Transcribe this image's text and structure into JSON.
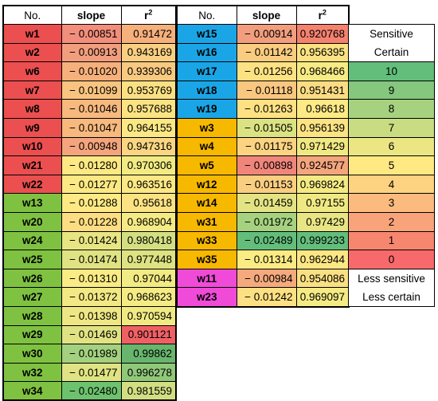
{
  "colors": {
    "red": "#ec4f4f",
    "green": "#7fc241",
    "blue": "#1aa6e6",
    "orange": "#f7b800",
    "magenta": "#f04ad8"
  },
  "left_table": {
    "headers": {
      "no": "No.",
      "slope": "slope",
      "r": "r",
      "r_sup": "2"
    },
    "rows": [
      {
        "id": "w1",
        "group": "red",
        "slope": "− 0.00851",
        "r2": "0.91472",
        "slope_color": "#f28e7b",
        "r2_color": "#f6b07c"
      },
      {
        "id": "w2",
        "group": "red",
        "slope": "− 0.00913",
        "r2": "0.943169",
        "slope_color": "#f29e7e",
        "r2_color": "#f9cf82"
      },
      {
        "id": "w6",
        "group": "red",
        "slope": "− 0.01020",
        "r2": "0.939306",
        "slope_color": "#f6b07c",
        "r2_color": "#f8c980"
      },
      {
        "id": "w7",
        "group": "red",
        "slope": "− 0.01099",
        "r2": "0.953769",
        "slope_color": "#f9c47f",
        "r2_color": "#fbe083"
      },
      {
        "id": "w8",
        "group": "red",
        "slope": "− 0.01046",
        "r2": "0.957688",
        "slope_color": "#f7b97e",
        "r2_color": "#fbe383"
      },
      {
        "id": "w9",
        "group": "red",
        "slope": "− 0.01047",
        "r2": "0.964155",
        "slope_color": "#f7b97e",
        "r2_color": "#fbe884"
      },
      {
        "id": "w10",
        "group": "red",
        "slope": "− 0.00948",
        "r2": "0.947316",
        "slope_color": "#f4a57d",
        "r2_color": "#fad682"
      },
      {
        "id": "w21",
        "group": "red",
        "slope": "− 0.01280",
        "r2": "0.970306",
        "slope_color": "#fde984",
        "r2_color": "#f2eb83"
      },
      {
        "id": "w22",
        "group": "red",
        "slope": "− 0.01277",
        "r2": "0.963516",
        "slope_color": "#fde984",
        "r2_color": "#fce884"
      },
      {
        "id": "w13",
        "group": "green",
        "slope": "− 0.01288",
        "r2": "0.95618",
        "slope_color": "#fdea84",
        "r2_color": "#fbe283"
      },
      {
        "id": "w20",
        "group": "green",
        "slope": "− 0.01228",
        "r2": "0.968904",
        "slope_color": "#fddd82",
        "r2_color": "#f5eb84"
      },
      {
        "id": "w24",
        "group": "green",
        "slope": "− 0.01424",
        "r2": "0.980418",
        "slope_color": "#e8e583",
        "r2_color": "#d4df82"
      },
      {
        "id": "w25",
        "group": "green",
        "slope": "− 0.01474",
        "r2": "0.977448",
        "slope_color": "#e0e383",
        "r2_color": "#dde282"
      },
      {
        "id": "w26",
        "group": "green",
        "slope": "− 0.01310",
        "r2": "0.97044",
        "slope_color": "#fbeb84",
        "r2_color": "#f2ea83"
      },
      {
        "id": "w27",
        "group": "green",
        "slope": "− 0.01372",
        "r2": "0.968623",
        "slope_color": "#f2e884",
        "r2_color": "#f5eb84"
      },
      {
        "id": "w28",
        "group": "green",
        "slope": "− 0.01398",
        "r2": "0.970594",
        "slope_color": "#eee783",
        "r2_color": "#f1ea83"
      },
      {
        "id": "w29",
        "group": "green",
        "slope": "− 0.01469",
        "r2": "0.901121",
        "slope_color": "#e1e383",
        "r2_color": "#ef6065"
      },
      {
        "id": "w30",
        "group": "green",
        "slope": "− 0.01989",
        "r2": "0.99862",
        "slope_color": "#a3d17f",
        "r2_color": "#68b56d"
      },
      {
        "id": "w32",
        "group": "green",
        "slope": "− 0.01477",
        "r2": "0.996278",
        "slope_color": "#e0e383",
        "r2_color": "#90c87a"
      },
      {
        "id": "w34",
        "group": "green",
        "slope": "− 0.02480",
        "r2": "0.981559",
        "slope_color": "#6dc26e",
        "r2_color": "#d2de82"
      }
    ]
  },
  "right_table": {
    "headers": {
      "no": "No.",
      "slope": "slope",
      "r": "r",
      "r_sup": "2"
    },
    "rows": [
      {
        "id": "w15",
        "group": "blue",
        "slope": "− 0.00914",
        "r2": "0.920768",
        "slope_color": "#f29e7e",
        "r2_color": "#f4826f"
      },
      {
        "id": "w16",
        "group": "blue",
        "slope": "− 0.01142",
        "r2": "0.956395",
        "slope_color": "#facc80",
        "r2_color": "#fbe283"
      },
      {
        "id": "w17",
        "group": "blue",
        "slope": "− 0.01256",
        "r2": "0.968466",
        "slope_color": "#fde283",
        "r2_color": "#f6eb84"
      },
      {
        "id": "w18",
        "group": "blue",
        "slope": "− 0.01118",
        "r2": "0.951431",
        "slope_color": "#f9c780",
        "r2_color": "#fbdc83"
      },
      {
        "id": "w19",
        "group": "blue",
        "slope": "− 0.01263",
        "r2": "0.96618",
        "slope_color": "#fde183",
        "r2_color": "#fde985"
      },
      {
        "id": "w3",
        "group": "orange",
        "slope": "− 0.01505",
        "r2": "0.956139",
        "slope_color": "#dbe282",
        "r2_color": "#fbe283"
      },
      {
        "id": "w4",
        "group": "orange",
        "slope": "− 0.01175",
        "r2": "0.971429",
        "slope_color": "#fbd381",
        "r2_color": "#f0e983"
      },
      {
        "id": "w5",
        "group": "orange",
        "slope": "− 0.00898",
        "r2": "0.924577",
        "slope_color": "#f0867b",
        "r2_color": "#f4a57d"
      },
      {
        "id": "w12",
        "group": "orange",
        "slope": "− 0.01153",
        "r2": "0.969824",
        "slope_color": "#face80",
        "r2_color": "#f4ea84"
      },
      {
        "id": "w14",
        "group": "orange",
        "slope": "− 0.01459",
        "r2": "0.97155",
        "slope_color": "#e3e383",
        "r2_color": "#efe983"
      },
      {
        "id": "w31",
        "group": "orange",
        "slope": "− 0.01972",
        "r2": "0.97429",
        "slope_color": "#a6d27f",
        "r2_color": "#e8e583"
      },
      {
        "id": "w33",
        "group": "orange",
        "slope": "− 0.02489",
        "r2": "0.999233",
        "slope_color": "#63be7b",
        "r2_color": "#63be7b"
      },
      {
        "id": "w35",
        "group": "orange",
        "slope": "− 0.01314",
        "r2": "0.962944",
        "slope_color": "#fbeb84",
        "r2_color": "#fde784"
      },
      {
        "id": "w11",
        "group": "magenta",
        "slope": "− 0.00984",
        "r2": "0.954086",
        "slope_color": "#f5aa7d",
        "r2_color": "#fbe083"
      },
      {
        "id": "w23",
        "group": "magenta",
        "slope": "− 0.01242",
        "r2": "0.969097",
        "slope_color": "#fde083",
        "r2_color": "#f5eb84"
      }
    ]
  },
  "legend": {
    "top_line1": "Sensitive",
    "top_line2": "Certain",
    "levels": [
      {
        "label": "10",
        "color": "#63be7b"
      },
      {
        "label": "9",
        "color": "#84c77d"
      },
      {
        "label": "8",
        "color": "#a6d27f"
      },
      {
        "label": "7",
        "color": "#c9dc81"
      },
      {
        "label": "6",
        "color": "#ebe583"
      },
      {
        "label": "5",
        "color": "#fee983"
      },
      {
        "label": "4",
        "color": "#fdd281"
      },
      {
        "label": "3",
        "color": "#fbbb7e"
      },
      {
        "label": "2",
        "color": "#f9a37b"
      },
      {
        "label": "1",
        "color": "#f7866f"
      },
      {
        "label": "0",
        "color": "#f8696b"
      }
    ],
    "bottom_line1": "Less sensitive",
    "bottom_line2": "Less certain"
  }
}
